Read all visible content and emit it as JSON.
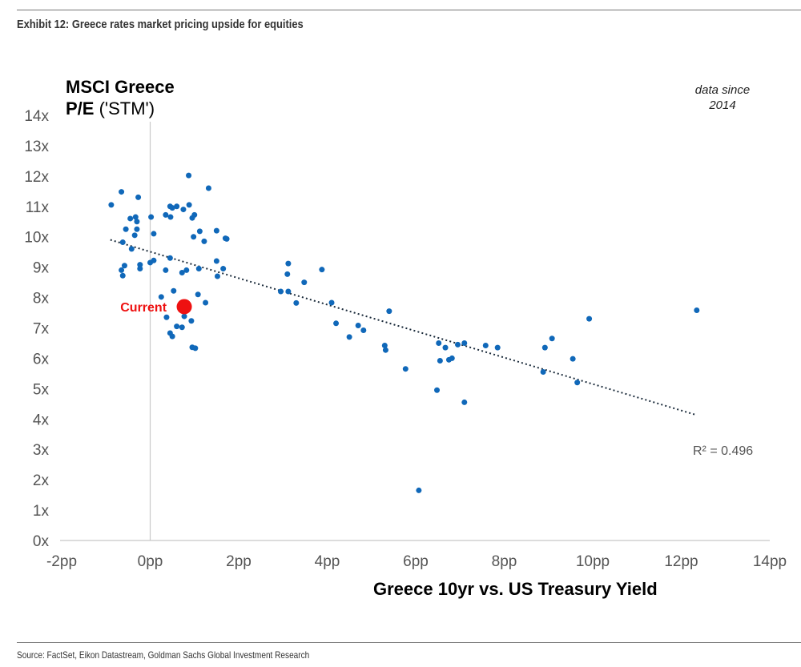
{
  "header": {
    "exhibit_title": "Exhibit 12: Greece rates market pricing upside for equities"
  },
  "footer": {
    "source": "Source: FactSet, Eikon Datastream, Goldman Sachs Global Investment Research"
  },
  "chart_data": {
    "type": "scatter",
    "title": "Exhibit 12: Greece rates market pricing upside for equities",
    "ylabel_bold": "MSCI Greece P/E",
    "ylabel_line1": "MSCI Greece",
    "ylabel_line2_bold": "P/E",
    "ylabel_line2_rest": " ('STM')",
    "xlabel": "Greece 10yr vs. US Treasury Yield",
    "annotation": [
      "data since",
      "2014"
    ],
    "r_squared_label": "R² = 0.496",
    "xlim": [
      -2,
      14
    ],
    "ylim": [
      0,
      14
    ],
    "x_ticks": [
      -2,
      0,
      2,
      4,
      6,
      8,
      10,
      12,
      14
    ],
    "x_tick_labels": [
      "-2pp",
      "0pp",
      "2pp",
      "4pp",
      "6pp",
      "8pp",
      "10pp",
      "12pp",
      "14pp"
    ],
    "y_ticks": [
      0,
      1,
      2,
      3,
      4,
      5,
      6,
      7,
      8,
      9,
      10,
      11,
      12,
      13,
      14
    ],
    "y_tick_labels": [
      "0x",
      "1x",
      "2x",
      "3x",
      "4x",
      "5x",
      "6x",
      "7x",
      "8x",
      "9x",
      "10x",
      "11x",
      "12x",
      "13x",
      "14x"
    ],
    "grid": false,
    "trendline": {
      "x": [
        -0.9,
        12.3
      ],
      "y": [
        9.9,
        4.15
      ],
      "style": "dotted"
    },
    "current": {
      "label": "Current",
      "x": 0.77,
      "y": 7.7,
      "color": "#ee1111"
    },
    "series_color": "#1068b9",
    "points": [
      {
        "x": -0.88,
        "y": 11.05
      },
      {
        "x": -0.65,
        "y": 11.48
      },
      {
        "x": -0.27,
        "y": 11.3
      },
      {
        "x": -0.45,
        "y": 10.6
      },
      {
        "x": -0.33,
        "y": 10.65
      },
      {
        "x": -0.3,
        "y": 10.5
      },
      {
        "x": -0.55,
        "y": 10.25
      },
      {
        "x": -0.3,
        "y": 10.25
      },
      {
        "x": -0.35,
        "y": 10.05
      },
      {
        "x": 0.02,
        "y": 10.65
      },
      {
        "x": 0.08,
        "y": 10.1
      },
      {
        "x": -0.62,
        "y": 9.82
      },
      {
        "x": -0.42,
        "y": 9.6
      },
      {
        "x": -0.58,
        "y": 9.05
      },
      {
        "x": -0.23,
        "y": 9.08
      },
      {
        "x": -0.23,
        "y": 8.95
      },
      {
        "x": -0.65,
        "y": 8.9
      },
      {
        "x": -0.62,
        "y": 8.72
      },
      {
        "x": 0.0,
        "y": 9.15
      },
      {
        "x": 0.08,
        "y": 9.22
      },
      {
        "x": 0.35,
        "y": 10.72
      },
      {
        "x": 0.45,
        "y": 11.0
      },
      {
        "x": 0.5,
        "y": 10.95
      },
      {
        "x": 0.6,
        "y": 11.0
      },
      {
        "x": 0.46,
        "y": 10.65
      },
      {
        "x": 0.75,
        "y": 10.9
      },
      {
        "x": 0.87,
        "y": 12.02
      },
      {
        "x": 0.88,
        "y": 11.05
      },
      {
        "x": 0.95,
        "y": 10.62
      },
      {
        "x": 1.0,
        "y": 10.72
      },
      {
        "x": 1.32,
        "y": 11.6
      },
      {
        "x": 1.12,
        "y": 10.18
      },
      {
        "x": 0.98,
        "y": 10.0
      },
      {
        "x": 1.22,
        "y": 9.85
      },
      {
        "x": 0.45,
        "y": 9.3
      },
      {
        "x": 0.35,
        "y": 8.9
      },
      {
        "x": 0.72,
        "y": 8.82
      },
      {
        "x": 0.82,
        "y": 8.9
      },
      {
        "x": 1.1,
        "y": 8.95
      },
      {
        "x": 1.5,
        "y": 10.2
      },
      {
        "x": 1.7,
        "y": 9.95
      },
      {
        "x": 1.73,
        "y": 9.93
      },
      {
        "x": 1.5,
        "y": 9.2
      },
      {
        "x": 1.65,
        "y": 8.95
      },
      {
        "x": 1.52,
        "y": 8.7
      },
      {
        "x": 0.25,
        "y": 8.02
      },
      {
        "x": 0.53,
        "y": 8.22
      },
      {
        "x": 1.08,
        "y": 8.1
      },
      {
        "x": 1.25,
        "y": 7.83
      },
      {
        "x": 0.37,
        "y": 7.35
      },
      {
        "x": 0.77,
        "y": 7.38
      },
      {
        "x": 0.93,
        "y": 7.23
      },
      {
        "x": 0.6,
        "y": 7.05
      },
      {
        "x": 0.72,
        "y": 7.02
      },
      {
        "x": 0.45,
        "y": 6.83
      },
      {
        "x": 0.5,
        "y": 6.72
      },
      {
        "x": 0.95,
        "y": 6.36
      },
      {
        "x": 1.02,
        "y": 6.33
      },
      {
        "x": 3.12,
        "y": 9.12
      },
      {
        "x": 3.1,
        "y": 8.77
      },
      {
        "x": 3.88,
        "y": 8.92
      },
      {
        "x": 3.48,
        "y": 8.5
      },
      {
        "x": 2.95,
        "y": 8.2
      },
      {
        "x": 3.12,
        "y": 8.2
      },
      {
        "x": 3.3,
        "y": 7.82
      },
      {
        "x": 4.1,
        "y": 7.83
      },
      {
        "x": 4.2,
        "y": 7.15
      },
      {
        "x": 4.5,
        "y": 6.7
      },
      {
        "x": 4.7,
        "y": 7.08
      },
      {
        "x": 4.82,
        "y": 6.92
      },
      {
        "x": 5.3,
        "y": 6.42
      },
      {
        "x": 5.32,
        "y": 6.27
      },
      {
        "x": 5.4,
        "y": 7.55
      },
      {
        "x": 5.77,
        "y": 5.65
      },
      {
        "x": 6.07,
        "y": 1.65
      },
      {
        "x": 6.48,
        "y": 4.95
      },
      {
        "x": 6.52,
        "y": 6.5
      },
      {
        "x": 6.55,
        "y": 5.92
      },
      {
        "x": 6.67,
        "y": 6.35
      },
      {
        "x": 6.75,
        "y": 5.95
      },
      {
        "x": 6.82,
        "y": 6.0
      },
      {
        "x": 6.95,
        "y": 6.45
      },
      {
        "x": 7.1,
        "y": 6.5
      },
      {
        "x": 7.1,
        "y": 4.55
      },
      {
        "x": 7.58,
        "y": 6.42
      },
      {
        "x": 7.85,
        "y": 6.35
      },
      {
        "x": 8.88,
        "y": 5.55
      },
      {
        "x": 8.92,
        "y": 6.35
      },
      {
        "x": 9.08,
        "y": 6.65
      },
      {
        "x": 9.55,
        "y": 5.98
      },
      {
        "x": 9.65,
        "y": 5.2
      },
      {
        "x": 9.92,
        "y": 7.3
      },
      {
        "x": 12.35,
        "y": 7.58
      }
    ]
  }
}
